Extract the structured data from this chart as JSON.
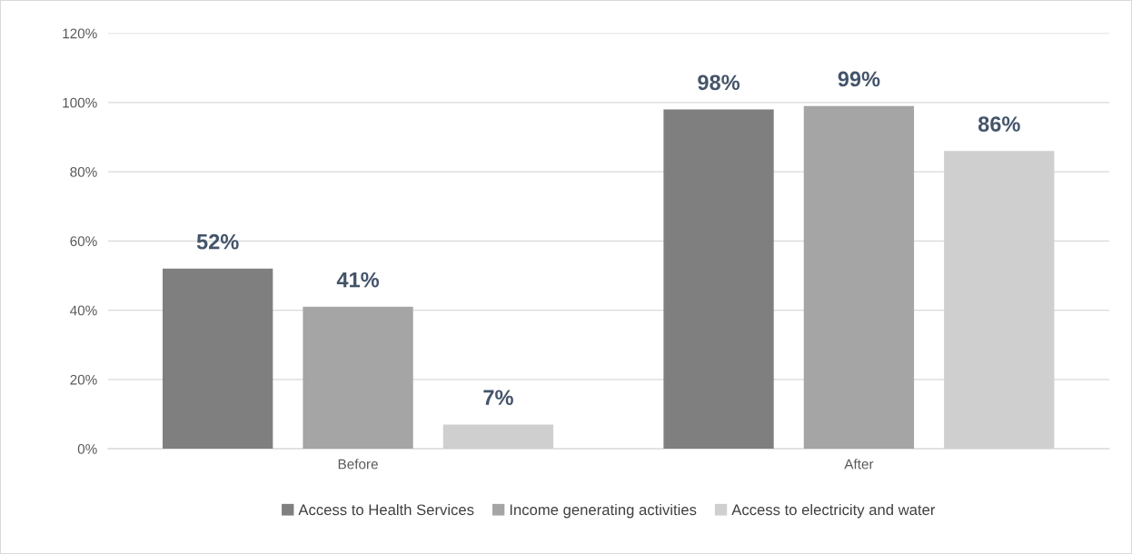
{
  "chart_data": {
    "type": "bar",
    "categories": [
      "Before",
      "After"
    ],
    "series": [
      {
        "name": "Access to Health Services",
        "color": "#7f7f7f",
        "values": [
          52,
          98
        ],
        "value_labels": [
          "52%",
          "98%"
        ]
      },
      {
        "name": "Income generating activities",
        "color": "#a5a5a5",
        "values": [
          41,
          99
        ],
        "value_labels": [
          "41%",
          "99%"
        ]
      },
      {
        "name": "Access to electricity and water",
        "color": "#cfcfcf",
        "values": [
          7,
          86
        ],
        "value_labels": [
          "7%",
          "86%"
        ]
      }
    ],
    "ylim": [
      0,
      120
    ],
    "yticks": [
      {
        "value": 0,
        "label": "0%"
      },
      {
        "value": 20,
        "label": "20%"
      },
      {
        "value": 40,
        "label": "40%"
      },
      {
        "value": 60,
        "label": "60%"
      },
      {
        "value": 80,
        "label": "80%"
      },
      {
        "value": 100,
        "label": "100%"
      },
      {
        "value": 120,
        "label": "120%"
      }
    ],
    "grid": "y",
    "legend": "bottom"
  }
}
